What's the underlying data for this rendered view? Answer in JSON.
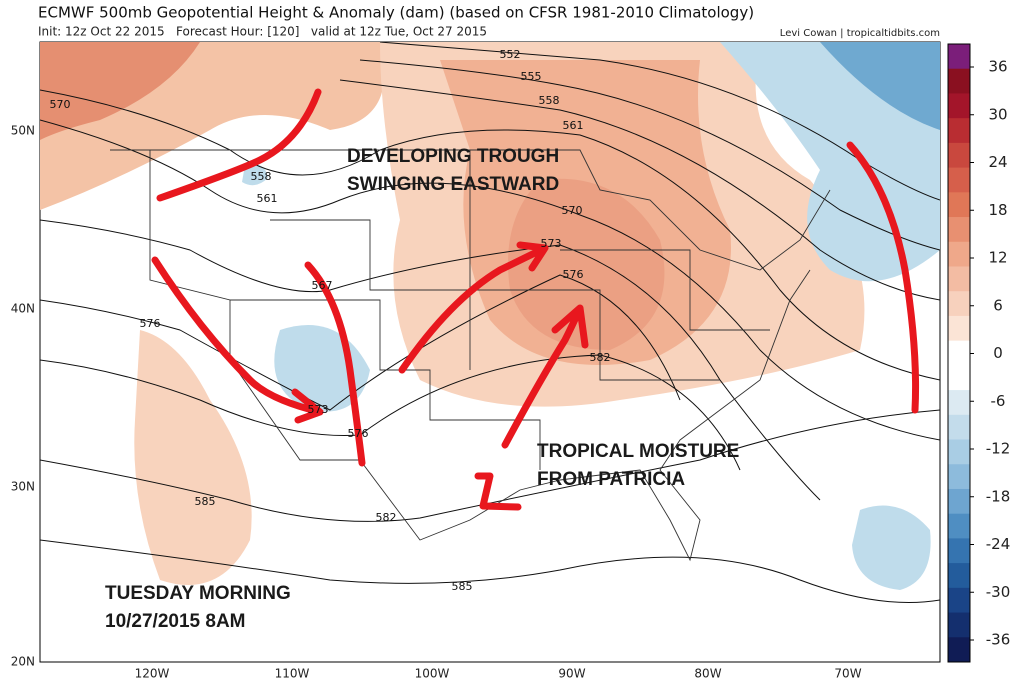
{
  "header": {
    "title": "ECMWF 500mb Geopotential Height & Anomaly (dam) (based on CFSR 1981-2010 Climatology)",
    "init": "Init: 12z Oct 22 2015   Forecast Hour: [120]   valid at 12z Tue, Oct 27 2015",
    "credit": "Levi Cowan | tropicaltidbits.com"
  },
  "lat_labels": [
    "50N",
    "40N",
    "30N",
    "20N"
  ],
  "lon_labels": [
    "120W",
    "110W",
    "100W",
    "90W",
    "80W",
    "70W"
  ],
  "colorbar": {
    "levels": [
      36,
      30,
      24,
      18,
      12,
      6,
      0,
      -6,
      -12,
      -18,
      -24,
      -30,
      -36
    ]
  },
  "contour_labels": [
    "552",
    "555",
    "558",
    "561",
    "570",
    "573",
    "576",
    "582",
    "570",
    "558",
    "561",
    "567",
    "576",
    "573",
    "576",
    "585",
    "582",
    "585"
  ],
  "annotations": [
    {
      "lines": [
        "DEVELOPING TROUGH",
        "SWINGING EASTWARD"
      ]
    },
    {
      "lines": [
        "TROPICAL MOISTURE",
        "FROM PATRICIA"
      ]
    },
    {
      "lines": [
        "TUESDAY MORNING",
        "10/27/2015 8AM"
      ]
    }
  ]
}
